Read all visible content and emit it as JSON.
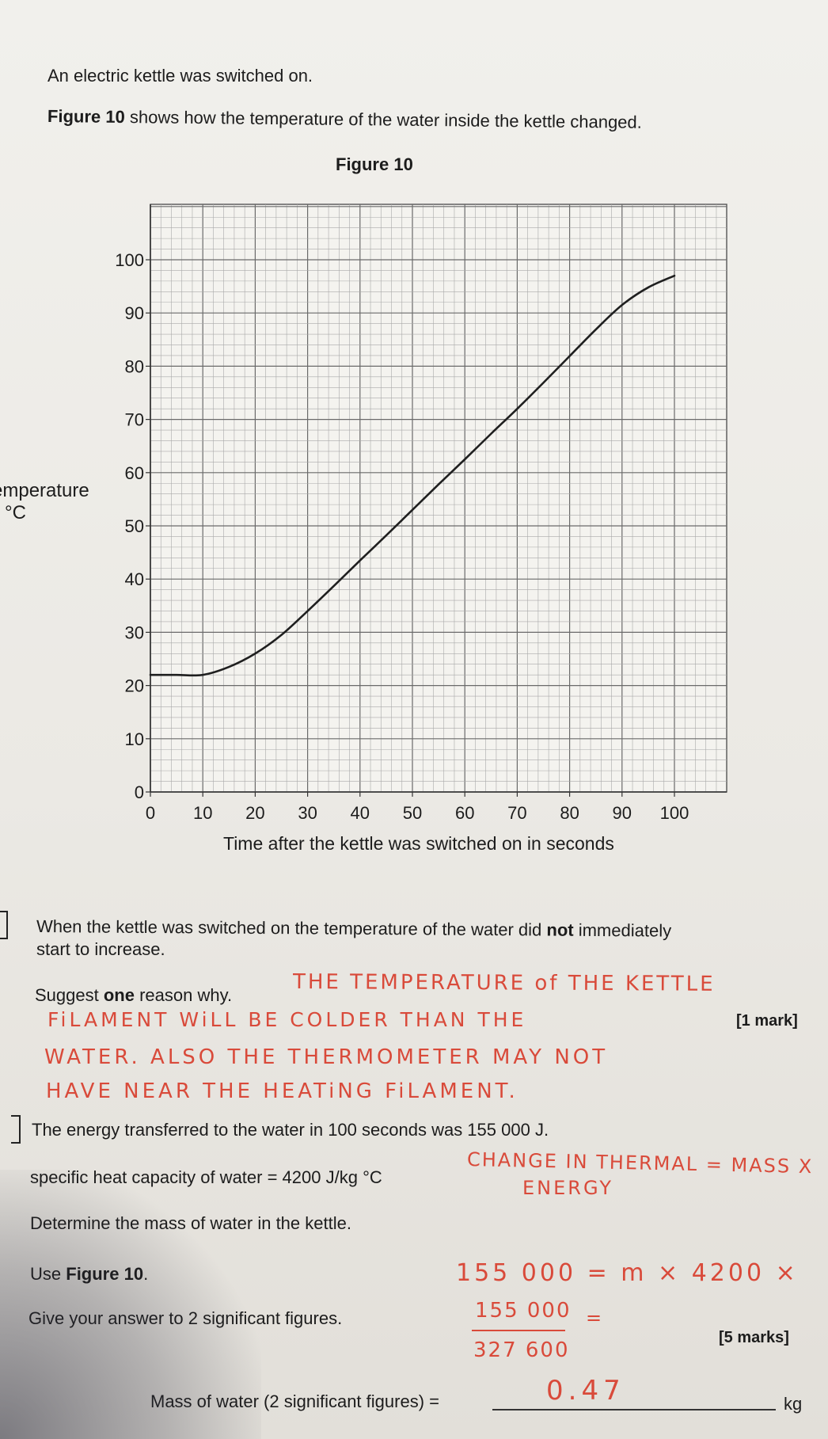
{
  "intro": {
    "line1": "An electric kettle was switched on.",
    "line2_bold": "Figure 10",
    "line2_rest": "shows how the temperature of the water inside the kettle changed."
  },
  "figure": {
    "title": "Figure 10",
    "ylabel_line1": "emperature",
    "ylabel_line2": "n °C",
    "xlabel": "Time after the kettle was switched on in seconds"
  },
  "chart_data": {
    "type": "line",
    "title": "Figure 10",
    "xlabel": "Time after the kettle was switched on in seconds",
    "ylabel": "Temperature in °C",
    "xlim": [
      0,
      110
    ],
    "ylim": [
      0,
      110
    ],
    "xticks": [
      "0",
      "10",
      "20",
      "30",
      "40",
      "50",
      "60",
      "70",
      "80",
      "90",
      "100"
    ],
    "yticks": [
      "0",
      "10",
      "20",
      "30",
      "40",
      "50",
      "60",
      "70",
      "80",
      "90",
      "100"
    ],
    "grid": true,
    "series": [
      {
        "values_x": [
          0,
          5,
          10,
          15,
          20,
          25,
          30,
          35,
          40,
          45,
          50,
          55,
          60,
          65,
          70,
          75,
          80,
          85,
          90,
          95,
          100
        ],
        "values_y": [
          22,
          22,
          22,
          23.5,
          26,
          29.5,
          34,
          38.7,
          43.5,
          48.2,
          53,
          57.8,
          62.5,
          67.3,
          72,
          76.9,
          81.9,
          86.9,
          91.5,
          94.8,
          97
        ]
      }
    ]
  },
  "q1": {
    "text_a1": "When the kettle was switched on the temperature of the water did ",
    "text_a_bold": "not",
    "text_a2": " immediately",
    "text_b": "start to increase.",
    "suggest_1": "Suggest ",
    "suggest_bold": "one",
    "suggest_2": " reason why.",
    "marks": "[1 mark]",
    "hand_1": "THE TEMPERATURE of THE KETTLE",
    "hand_2": "FiLAMENT WiLL BE COLDER THAN THE",
    "hand_3": "WATER. ALSO THE THERMOMETER MAY NOT",
    "hand_4": "HAVE NEAR THE HEATiNG FiLAMENT."
  },
  "q2": {
    "energy": "The energy transferred to the water in 100 seconds was 155 000 J.",
    "shc": "specific heat capacity of water = 4200 J/kg °C",
    "determine": "Determine the mass of water in the kettle.",
    "use_1": "Use ",
    "use_bold": "Figure 10",
    "use_2": ".",
    "sigfig": "Give your answer to 2 significant figures.",
    "marks": "[5 marks]",
    "hand_eq1": "CHANGE IN THERMAL = MASS X",
    "hand_eq2": "ENERGY",
    "hand_calc1": "155 000 = m × 4200 ×",
    "hand_calc2": "155 000",
    "hand_calc3": "=",
    "hand_calc4": "327 600",
    "answer_label": "Mass of water (2 significant figures) =",
    "answer_value": "0.47",
    "unit": "kg"
  }
}
